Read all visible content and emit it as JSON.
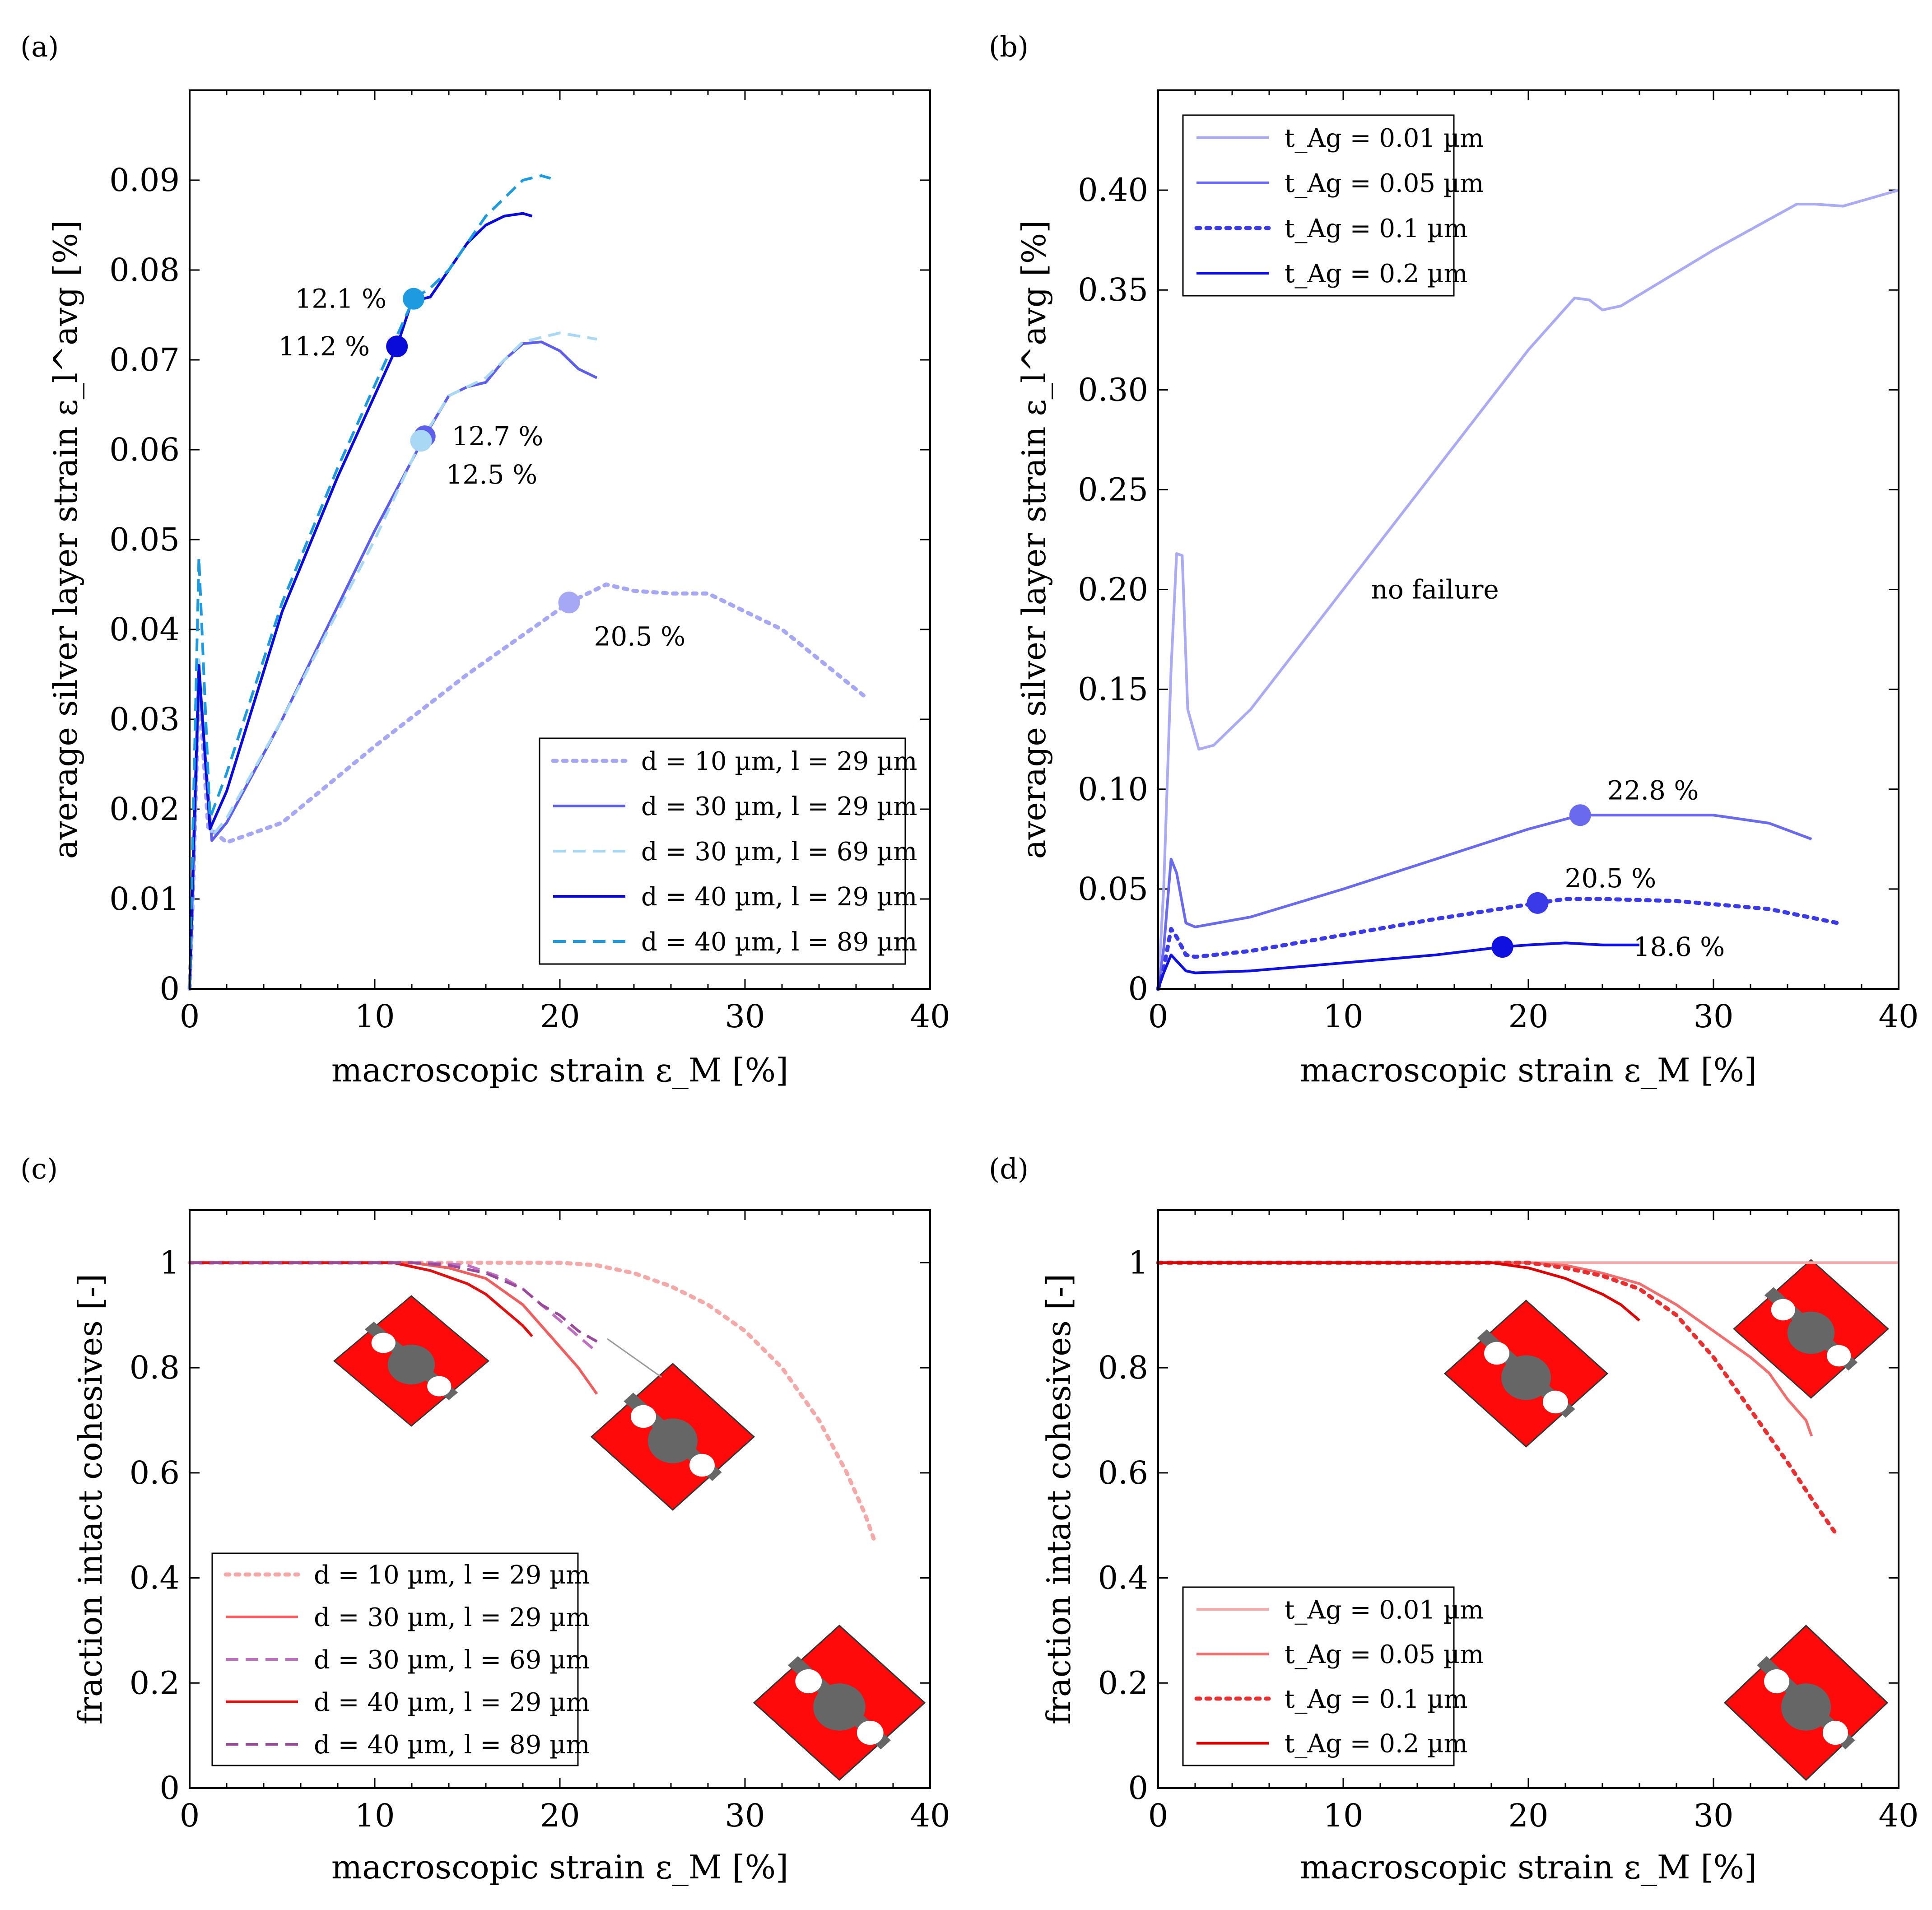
{
  "chart_data": [
    {
      "type": "line",
      "panel": "(a)",
      "xlabel": "macroscopic strain ε_M [%]",
      "ylabel": "average silver layer strain ε_l^avg [%]",
      "xlim": [
        0,
        40
      ],
      "ylim": [
        0,
        0.1
      ],
      "xticks": [
        0,
        10,
        20,
        30,
        40
      ],
      "yticks": [
        0,
        0.01,
        0.02,
        0.03,
        0.04,
        0.05,
        0.06,
        0.07,
        0.08,
        0.09
      ],
      "ytick_labels": [
        "0",
        "0.01",
        "0.02",
        "0.03",
        "0.04",
        "0.05",
        "0.06",
        "0.07",
        "0.08",
        "0.09"
      ],
      "legend_position": "bottom-right",
      "series": [
        {
          "name": "d = 10 µm, l = 29 µm",
          "color": "#a7a8f5",
          "dash": "dotted",
          "x": [
            0,
            0.2,
            0.5,
            1.0,
            2,
            5,
            10,
            15,
            20.5,
            22.5,
            24,
            26,
            28,
            32,
            36.5
          ],
          "y": [
            0,
            0.012,
            0.034,
            0.018,
            0.0163,
            0.0185,
            0.027,
            0.035,
            0.043,
            0.045,
            0.0443,
            0.044,
            0.044,
            0.04,
            0.0325
          ]
        },
        {
          "name": "d = 30 µm, l = 29 µm",
          "color": "#5e5eed",
          "dash": "solid",
          "x": [
            0,
            0.2,
            0.5,
            1.2,
            2,
            5,
            10,
            12.7,
            14,
            15,
            16,
            17,
            18,
            19,
            20,
            21,
            22
          ],
          "y": [
            0,
            0.012,
            0.035,
            0.0165,
            0.0185,
            0.03,
            0.051,
            0.0615,
            0.066,
            0.067,
            0.0675,
            0.07,
            0.0718,
            0.072,
            0.071,
            0.069,
            0.068
          ]
        },
        {
          "name": "d = 30 µm, l = 69 µm",
          "color": "#a9d8f5",
          "dash": "dashed",
          "x": [
            0,
            0.2,
            0.5,
            1.2,
            2,
            5,
            10,
            12.5,
            14,
            16,
            18,
            20,
            22
          ],
          "y": [
            0,
            0.013,
            0.037,
            0.017,
            0.019,
            0.03,
            0.05,
            0.061,
            0.066,
            0.068,
            0.072,
            0.073,
            0.0723
          ]
        },
        {
          "name": "d = 40 µm, l = 29 µm",
          "color": "#0b0bd9",
          "dash": "solid",
          "x": [
            0,
            0.2,
            0.5,
            1.1,
            2,
            5,
            8,
            11.2,
            12,
            13,
            14,
            15,
            16,
            17,
            18,
            18.5
          ],
          "y": [
            0,
            0.015,
            0.036,
            0.0178,
            0.022,
            0.042,
            0.057,
            0.0715,
            0.0765,
            0.077,
            0.08,
            0.083,
            0.085,
            0.086,
            0.0863,
            0.086
          ]
        },
        {
          "name": "d = 40 µm, l = 89 µm",
          "color": "#1e9ae0",
          "dash": "dashed",
          "x": [
            0,
            0.2,
            0.5,
            1.1,
            2,
            5,
            8,
            12.1,
            13,
            14,
            15,
            16,
            17,
            18,
            19,
            19.5
          ],
          "y": [
            0,
            0.02,
            0.048,
            0.019,
            0.024,
            0.043,
            0.058,
            0.0768,
            0.078,
            0.08,
            0.083,
            0.086,
            0.088,
            0.09,
            0.0905,
            0.0902
          ]
        }
      ],
      "markers": [
        {
          "x": 12.1,
          "y": 0.0768,
          "color": "#1e9ae0",
          "label": "12.1 %",
          "side": "left"
        },
        {
          "x": 11.2,
          "y": 0.0715,
          "color": "#0b0bd9",
          "label": "11.2 %",
          "side": "left"
        },
        {
          "x": 12.7,
          "y": 0.0615,
          "color": "#5e5eed",
          "label": "12.7 %",
          "side": "right"
        },
        {
          "x": 12.5,
          "y": 0.061,
          "color": "#a9d8f5",
          "label": "12.5 %",
          "side": "below-right"
        },
        {
          "x": 20.5,
          "y": 0.043,
          "color": "#a7a8f5",
          "label": "20.5 %",
          "side": "below-right"
        }
      ]
    },
    {
      "type": "line",
      "panel": "(b)",
      "xlabel": "macroscopic strain ε_M [%]",
      "ylabel": "average silver layer strain ε_l^avg [%]",
      "xlim": [
        0,
        40
      ],
      "ylim": [
        0,
        0.45
      ],
      "xticks": [
        0,
        10,
        20,
        30,
        40
      ],
      "yticks": [
        0,
        0.05,
        0.1,
        0.15,
        0.2,
        0.25,
        0.3,
        0.35,
        0.4
      ],
      "ytick_labels": [
        "0",
        "0.05",
        "0.10",
        "0.15",
        "0.20",
        "0.25",
        "0.30",
        "0.35",
        "0.40"
      ],
      "legend_position": "top-left",
      "series": [
        {
          "name": "t_Ag = 0.01 µm",
          "color": "#aaaaf5",
          "dash": "solid",
          "x": [
            0,
            0.3,
            0.7,
            1.0,
            1.3,
            1.6,
            2.2,
            3,
            5,
            10,
            15,
            20,
            22.5,
            23.3,
            24,
            25,
            30,
            34.5,
            35.5,
            37,
            40
          ],
          "y": [
            0,
            0.05,
            0.16,
            0.218,
            0.217,
            0.14,
            0.12,
            0.122,
            0.14,
            0.2,
            0.26,
            0.32,
            0.346,
            0.345,
            0.34,
            0.342,
            0.37,
            0.393,
            0.393,
            0.392,
            0.4
          ]
        },
        {
          "name": "t_Ag = 0.05 µm",
          "color": "#6a6aee",
          "dash": "solid",
          "x": [
            0,
            0.3,
            0.7,
            1.0,
            1.5,
            2,
            5,
            10,
            15,
            20,
            22.8,
            25,
            30,
            33,
            35.3
          ],
          "y": [
            0,
            0.02,
            0.065,
            0.058,
            0.033,
            0.031,
            0.036,
            0.05,
            0.065,
            0.08,
            0.087,
            0.087,
            0.087,
            0.083,
            0.075
          ]
        },
        {
          "name": "t_Ag = 0.1 µm",
          "color": "#3a3ae8",
          "dash": "dotted",
          "x": [
            0,
            0.3,
            0.7,
            1.0,
            1.5,
            2,
            5,
            10,
            15,
            20.5,
            22,
            24,
            28,
            33,
            36.7
          ],
          "y": [
            0,
            0.01,
            0.03,
            0.026,
            0.017,
            0.016,
            0.019,
            0.027,
            0.035,
            0.043,
            0.045,
            0.045,
            0.044,
            0.04,
            0.033
          ]
        },
        {
          "name": "t_Ag = 0.2 µm",
          "color": "#1010e0",
          "dash": "solid",
          "x": [
            0,
            0.3,
            0.7,
            1.0,
            1.5,
            2,
            5,
            10,
            15,
            18.6,
            20,
            22,
            24,
            26
          ],
          "y": [
            0,
            0.008,
            0.017,
            0.014,
            0.009,
            0.008,
            0.009,
            0.013,
            0.017,
            0.021,
            0.022,
            0.023,
            0.022,
            0.022
          ]
        }
      ],
      "markers": [
        {
          "x": 22.8,
          "y": 0.087,
          "color": "#6a6aee",
          "label": "22.8 %",
          "side": "upper-right"
        },
        {
          "x": 20.5,
          "y": 0.043,
          "color": "#3a3ae8",
          "label": "20.5 %",
          "side": "upper-right"
        },
        {
          "x": 18.6,
          "y": 0.021,
          "color": "#1010e0",
          "label": "18.6 %",
          "side": "far-right"
        }
      ],
      "annotations": [
        {
          "text": "no failure",
          "x": 11.5,
          "y": 0.2
        }
      ]
    },
    {
      "type": "line",
      "panel": "(c)",
      "xlabel": "macroscopic strain ε_M [%]",
      "ylabel": "fraction intact cohesives [-]",
      "xlim": [
        0,
        40
      ],
      "ylim": [
        0,
        1.1
      ],
      "xticks": [
        0,
        10,
        20,
        30,
        40
      ],
      "yticks": [
        0,
        0.2,
        0.4,
        0.6,
        0.8,
        1
      ],
      "ytick_labels": [
        "0",
        "0.2",
        "0.4",
        "0.6",
        "0.8",
        "1"
      ],
      "legend_position": "bottom-left",
      "series": [
        {
          "name": "d = 10 µm, l = 29 µm",
          "color": "#f5a8a8",
          "dash": "dotted",
          "x": [
            0,
            20,
            22,
            24,
            26,
            28,
            30,
            32,
            34,
            35.5,
            36.5,
            37
          ],
          "y": [
            1,
            1,
            0.995,
            0.98,
            0.955,
            0.92,
            0.87,
            0.8,
            0.7,
            0.6,
            0.52,
            0.47
          ]
        },
        {
          "name": "d = 30 µm, l = 29 µm",
          "color": "#ee6060",
          "dash": "solid",
          "x": [
            0,
            12,
            14,
            16,
            18,
            19,
            20,
            21,
            22
          ],
          "y": [
            1,
            1,
            0.99,
            0.97,
            0.92,
            0.88,
            0.84,
            0.8,
            0.75
          ]
        },
        {
          "name": "d = 30 µm, l = 69 µm",
          "color": "#c070c0",
          "dash": "dashed",
          "x": [
            0,
            13,
            15,
            17,
            18,
            19,
            20,
            21,
            22
          ],
          "y": [
            1,
            1,
            0.995,
            0.97,
            0.95,
            0.92,
            0.89,
            0.86,
            0.83
          ]
        },
        {
          "name": "d = 40 µm, l = 29 µm",
          "color": "#e01010",
          "dash": "solid",
          "x": [
            0,
            11,
            13,
            15,
            16,
            17,
            18,
            18.5
          ],
          "y": [
            1,
            1,
            0.985,
            0.96,
            0.94,
            0.91,
            0.88,
            0.86
          ]
        },
        {
          "name": "d = 40 µm, l = 89 µm",
          "color": "#9a4a9a",
          "dash": "dashed",
          "x": [
            0,
            12,
            14,
            16,
            17,
            18,
            19,
            20,
            21,
            22
          ],
          "y": [
            1,
            1,
            0.995,
            0.98,
            0.965,
            0.95,
            0.92,
            0.9,
            0.87,
            0.85
          ]
        }
      ]
    },
    {
      "type": "line",
      "panel": "(d)",
      "xlabel": "macroscopic strain ε_M [%]",
      "ylabel": "fraction intact cohesives [-]",
      "xlim": [
        0,
        40
      ],
      "ylim": [
        0,
        1.1
      ],
      "xticks": [
        0,
        10,
        20,
        30,
        40
      ],
      "yticks": [
        0,
        0.2,
        0.4,
        0.6,
        0.8,
        1
      ],
      "ytick_labels": [
        "0",
        "0.2",
        "0.4",
        "0.6",
        "0.8",
        "1"
      ],
      "legend_position": "bottom-left",
      "series": [
        {
          "name": "t_Ag = 0.01 µm",
          "color": "#f5a8a8",
          "dash": "solid",
          "x": [
            0,
            40
          ],
          "y": [
            1,
            1
          ]
        },
        {
          "name": "t_Ag = 0.05 µm",
          "color": "#f07070",
          "dash": "solid",
          "x": [
            0,
            20,
            22,
            24,
            26,
            28,
            30,
            32,
            33,
            34,
            35,
            35.3
          ],
          "y": [
            1,
            1,
            0.995,
            0.98,
            0.96,
            0.92,
            0.87,
            0.82,
            0.79,
            0.74,
            0.7,
            0.67
          ]
        },
        {
          "name": "t_Ag = 0.1 µm",
          "color": "#e83030",
          "dash": "dotted",
          "x": [
            0,
            20,
            22,
            24,
            26,
            28,
            30,
            32,
            34,
            35.5,
            36.7
          ],
          "y": [
            1,
            1,
            0.99,
            0.975,
            0.95,
            0.9,
            0.82,
            0.72,
            0.62,
            0.54,
            0.48
          ]
        },
        {
          "name": "t_Ag = 0.2 µm",
          "color": "#dd0000",
          "dash": "solid",
          "x": [
            0,
            18,
            20,
            22,
            24,
            25,
            26
          ],
          "y": [
            1,
            1,
            0.99,
            0.97,
            0.94,
            0.92,
            0.89
          ]
        }
      ]
    }
  ]
}
